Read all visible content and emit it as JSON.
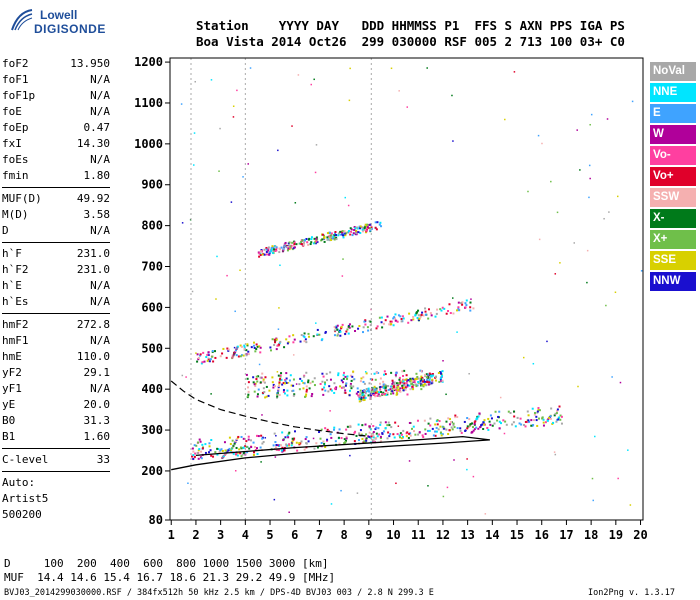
{
  "logo": {
    "line1": "Lowell",
    "line2": "DIGISONDE"
  },
  "header": {
    "labels": "Station    YYYY DAY   DDD HHMMSS P1  FFS S AXN PPS IGA PS",
    "values": "Boa Vista 2014 Oct26  299 030000 RSF 005 2 713 100 03+ C0"
  },
  "params_group1": [
    {
      "name": "foF2",
      "value": "13.950"
    },
    {
      "name": "foF1",
      "value": "N/A"
    },
    {
      "name": "foF1p",
      "value": "N/A"
    },
    {
      "name": "foE",
      "value": "N/A"
    },
    {
      "name": "foEp",
      "value": "0.47"
    },
    {
      "name": "fxI",
      "value": "14.30"
    },
    {
      "name": "foEs",
      "value": "N/A"
    },
    {
      "name": "fmin",
      "value": "1.80"
    }
  ],
  "params_group2": [
    {
      "name": "MUF(D)",
      "value": "49.92"
    },
    {
      "name": "M(D)",
      "value": "3.58"
    },
    {
      "name": "D",
      "value": "N/A"
    }
  ],
  "params_group3": [
    {
      "name": "h`F",
      "value": "231.0"
    },
    {
      "name": "h`F2",
      "value": "231.0"
    },
    {
      "name": "h`E",
      "value": "N/A"
    },
    {
      "name": "h`Es",
      "value": "N/A"
    }
  ],
  "params_group4": [
    {
      "name": "hmF2",
      "value": "272.8"
    },
    {
      "name": "hmF1",
      "value": "N/A"
    },
    {
      "name": "hmE",
      "value": "110.0"
    },
    {
      "name": "yF2",
      "value": "29.1"
    },
    {
      "name": "yF1",
      "value": "N/A"
    },
    {
      "name": "yE",
      "value": "20.0"
    },
    {
      "name": "B0",
      "value": "31.3"
    },
    {
      "name": "B1",
      "value": "1.60"
    }
  ],
  "clevel": {
    "name": "C-level",
    "value": "33"
  },
  "auto": {
    "line1": "Auto:",
    "line2": "Artist5",
    "line3": "500200"
  },
  "legend": [
    {
      "label": "NoVal",
      "color": "#a8a8a8"
    },
    {
      "label": "NNE",
      "color": "#00e5ff"
    },
    {
      "label": "E",
      "color": "#3fa3ff"
    },
    {
      "label": "W",
      "color": "#b0009a"
    },
    {
      "label": "Vo-",
      "color": "#ff3fa0"
    },
    {
      "label": "Vo+",
      "color": "#e0002a"
    },
    {
      "label": "SSW",
      "color": "#f5b0b0"
    },
    {
      "label": "X-",
      "color": "#007a1a"
    },
    {
      "label": "X+",
      "color": "#6fbf4a"
    },
    {
      "label": "SSE",
      "color": "#d8d000"
    },
    {
      "label": "NNW",
      "color": "#1a0fcf"
    }
  ],
  "bottom": {
    "line1": "D     100  200  400  600  800 1000 1500 3000 [km]",
    "line2": "MUF  14.4 14.6 15.4 16.7 18.6 21.3 29.2 49.9 [MHz]"
  },
  "footer": "BVJ03_2014299030000.RSF / 384fx512h 50 kHz 2.5 km / DPS-4D BVJ03 003 / 2.8 N 299.3 E",
  "version": "Ion2Png v. 1.3.17",
  "chart_data": {
    "type": "scatter",
    "x_ticks": [
      1,
      2,
      3,
      4,
      5,
      6,
      7,
      8,
      9,
      10,
      11,
      12,
      13,
      14,
      15,
      16,
      17,
      18,
      19,
      20
    ],
    "y_ticks": [
      80,
      200,
      300,
      400,
      500,
      600,
      700,
      800,
      900,
      1000,
      1100,
      1200
    ],
    "xlim": [
      0.95,
      20.1
    ],
    "ylim": [
      80,
      1210
    ],
    "dashed_guides_x": [
      1.8,
      4.0,
      9.1
    ],
    "bands": [
      {
        "x_start": 1.8,
        "y_start": 238,
        "x_end": 16.8,
        "y_end": 330,
        "spread": 12
      },
      {
        "x_start": 1.8,
        "y_start": 260,
        "x_end": 16.8,
        "y_end": 345,
        "spread": 18
      },
      {
        "x_start": 2.0,
        "y_start": 475,
        "x_end": 13.2,
        "y_end": 610,
        "spread": 14
      },
      {
        "x_start": 8.5,
        "y_start": 385,
        "x_end": 12.0,
        "y_end": 435,
        "spread": 14
      },
      {
        "x_start": 4.0,
        "y_start": 410,
        "x_end": 11.2,
        "y_end": 420,
        "spread": 30
      },
      {
        "x_start": 4.5,
        "y_start": 735,
        "x_end": 9.5,
        "y_end": 805,
        "spread": 10
      }
    ],
    "profile_solid": [
      [
        1.0,
        203
      ],
      [
        2.0,
        215
      ],
      [
        4.0,
        232
      ],
      [
        6.0,
        243
      ],
      [
        8.0,
        253
      ],
      [
        10.0,
        261
      ],
      [
        12.0,
        268
      ],
      [
        13.9,
        276
      ],
      [
        12.8,
        284
      ],
      [
        10.0,
        272
      ],
      [
        6.0,
        257
      ],
      [
        2.0,
        238
      ]
    ],
    "profile_dashed": [
      [
        1.0,
        420
      ],
      [
        1.5,
        395
      ],
      [
        2.0,
        375
      ],
      [
        3.0,
        350
      ],
      [
        4.0,
        334
      ],
      [
        5.0,
        320
      ],
      [
        6.0,
        308
      ],
      [
        7.0,
        299
      ],
      [
        8.0,
        291
      ],
      [
        9.0,
        285
      ]
    ]
  }
}
